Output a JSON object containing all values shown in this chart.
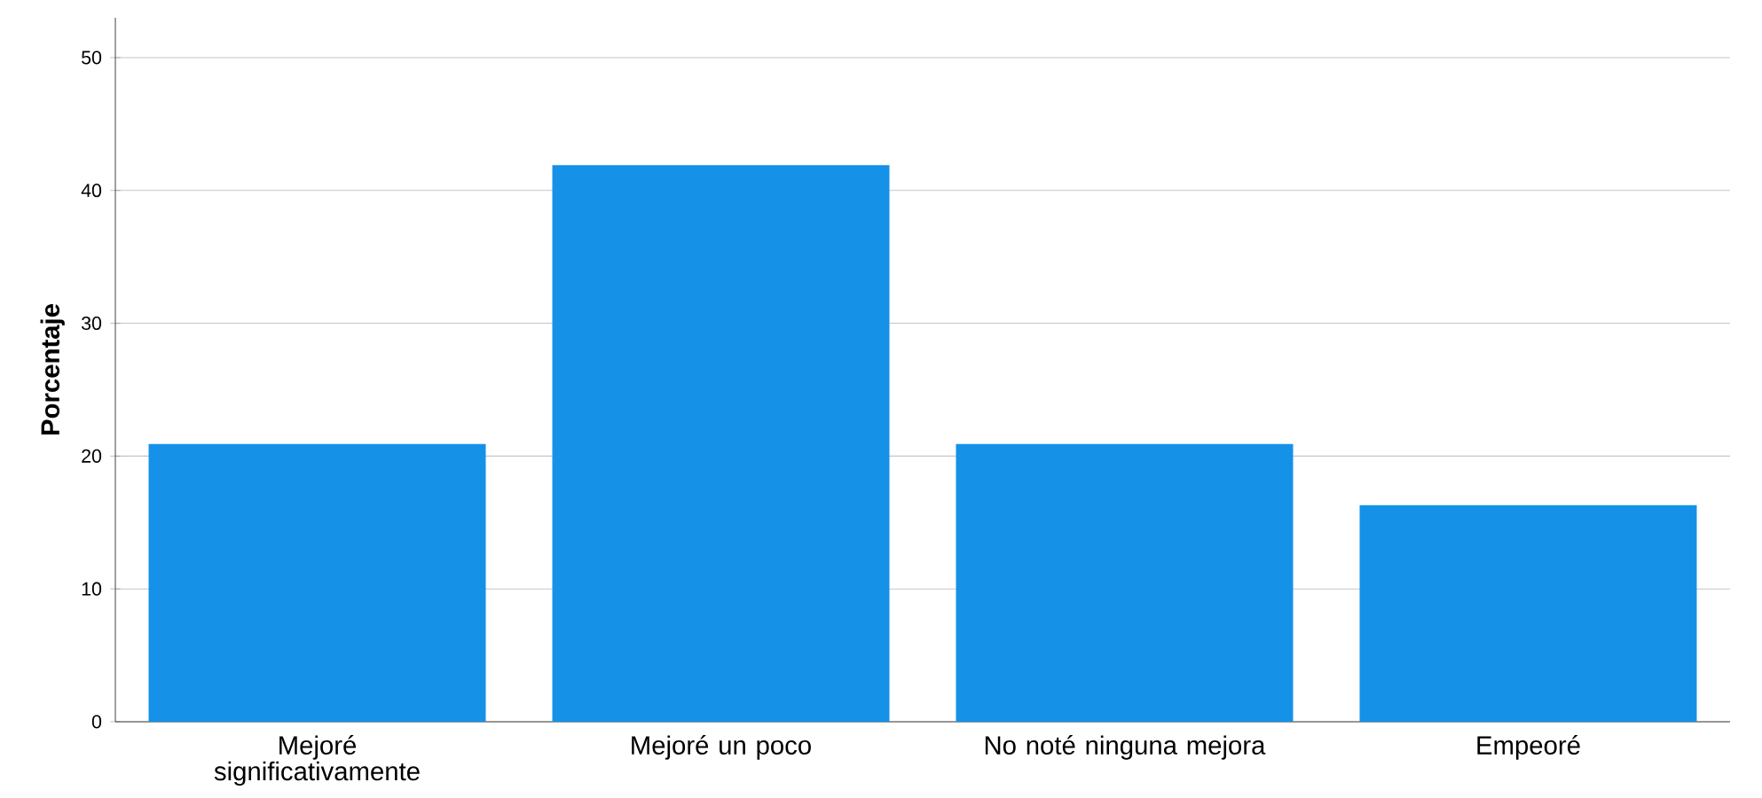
{
  "chart_data": {
    "type": "bar",
    "ylabel": "Porcentaje",
    "categories": [
      "Mejoré significativamente",
      "Mejoré un poco",
      "No noté ninguna mejora",
      "Empeoré"
    ],
    "values": [
      20.9,
      41.9,
      20.9,
      16.3
    ],
    "color": "#1591e8",
    "ylim": [
      0,
      53
    ],
    "yticks": [
      0,
      10,
      20,
      30,
      40,
      50
    ],
    "grid": "y"
  }
}
